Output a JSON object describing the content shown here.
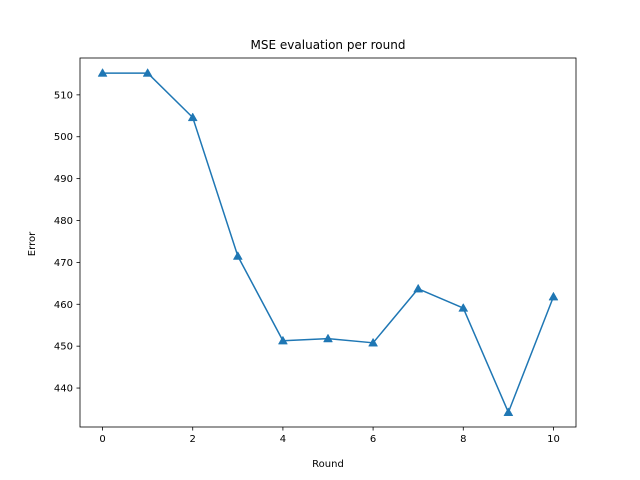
{
  "chart_data": {
    "type": "line",
    "title": "MSE evaluation per round",
    "xlabel": "Round",
    "ylabel": "Error",
    "x": [
      0,
      1,
      2,
      3,
      4,
      5,
      6,
      7,
      8,
      9,
      10
    ],
    "series": [
      {
        "values": [
          515.2,
          515.2,
          504.6,
          471.5,
          451.3,
          451.8,
          450.8,
          463.7,
          459.1,
          434.2,
          461.8
        ],
        "color": "#1f77b4",
        "marker": "triangle-up"
      }
    ],
    "xlim": [
      -0.5,
      10.5
    ],
    "ylim": [
      430.7,
      518.8
    ],
    "xticks": [
      0,
      2,
      4,
      6,
      8,
      10
    ],
    "yticks": [
      440,
      450,
      460,
      470,
      480,
      490,
      500,
      510
    ],
    "grid": false,
    "legend": "none"
  }
}
